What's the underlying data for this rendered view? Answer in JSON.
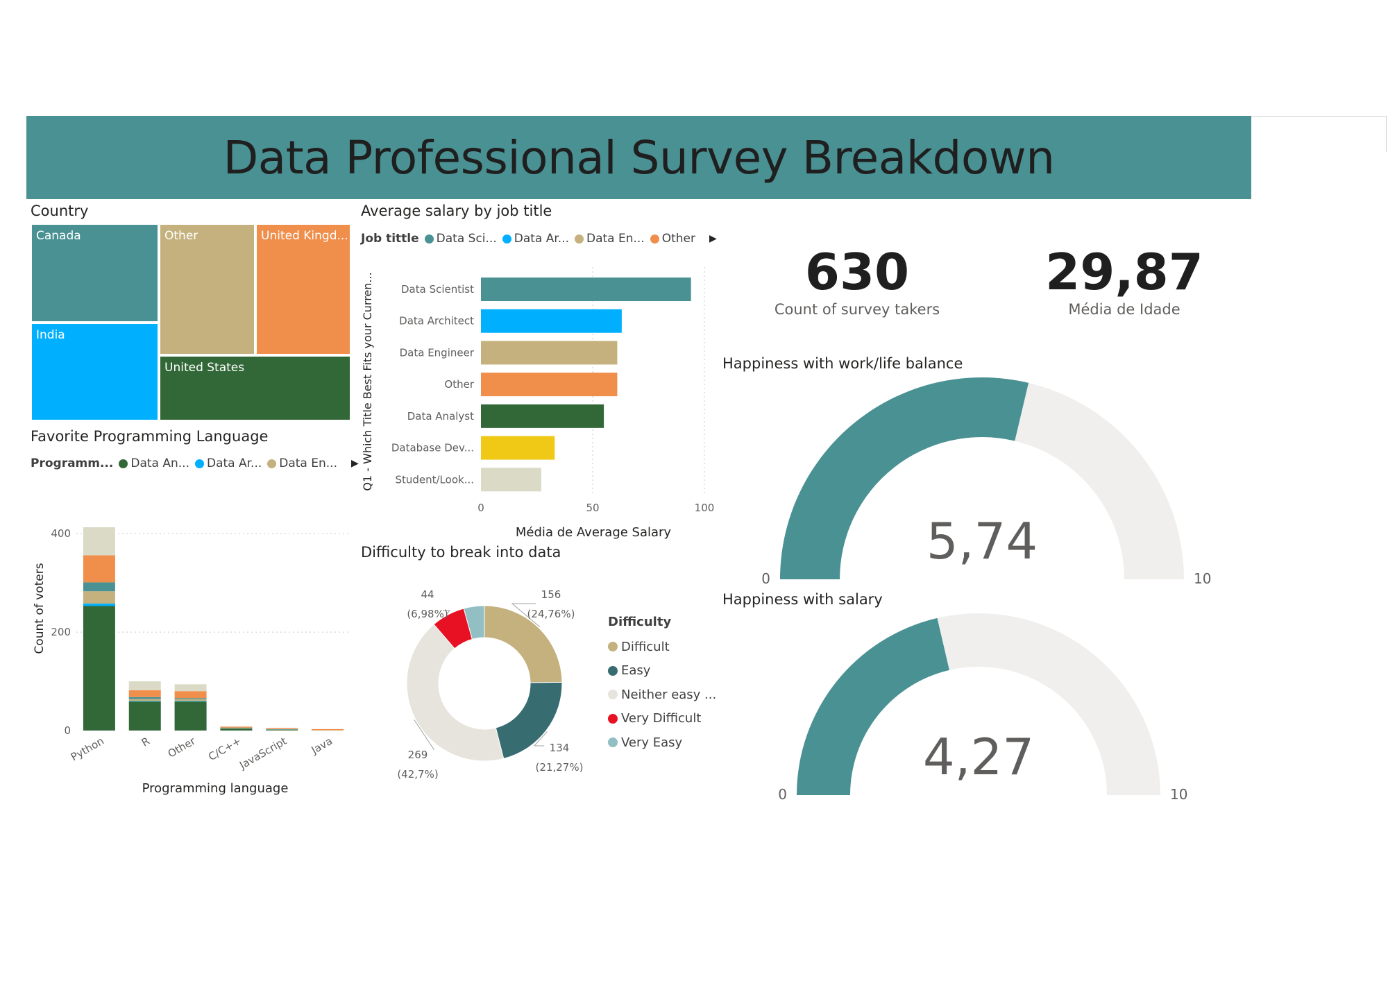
{
  "header": {
    "title": "Data Professional Survey Breakdown"
  },
  "colors": {
    "teal": "#4a9194",
    "blue": "#00b0ff",
    "tan": "#c4b17d",
    "orange": "#f08e4b",
    "green": "#326837",
    "yellow": "#f0c816",
    "lightgray": "#dbdac7",
    "darkteal": "#376c70",
    "offwhite": "#e6e4dc",
    "red": "#e81123",
    "lightblue": "#91bfc4",
    "gaugebg": "#f0efed"
  },
  "country": {
    "title": "Country",
    "chart_data": {
      "type": "treemap",
      "items": [
        {
          "label": "Canada"
        },
        {
          "label": "India"
        },
        {
          "label": "Other"
        },
        {
          "label": "United Kingd..."
        },
        {
          "label": "United States"
        }
      ]
    }
  },
  "programming": {
    "title": "Favorite Programming Language",
    "legend": {
      "heading": "Programm...",
      "items": [
        "Data An...",
        "Data Ar...",
        "Data En..."
      ]
    },
    "chart_data": {
      "type": "bar",
      "stacked": true,
      "xlabel": "Programming language",
      "ylabel": "Count of voters",
      "ylim": [
        0,
        420
      ],
      "yticks": [
        0,
        200,
        400
      ],
      "categories": [
        "Python",
        "R",
        "Other",
        "C/C++",
        "JavaScript",
        "Java"
      ],
      "series": [
        {
          "name": "Data Analyst",
          "color": "#326837",
          "values": [
            253,
            59,
            59,
            4,
            1,
            0
          ]
        },
        {
          "name": "Data Architect",
          "color": "#00b0ff",
          "values": [
            5,
            1,
            1,
            0,
            0,
            0
          ]
        },
        {
          "name": "Data Engineer",
          "color": "#c4b17d",
          "values": [
            25,
            4,
            4,
            1,
            1,
            1
          ]
        },
        {
          "name": "",
          "color": "#4a9194",
          "values": [
            18,
            4,
            2,
            1,
            1,
            0
          ]
        },
        {
          "name": "",
          "color": "#f08e4b",
          "values": [
            55,
            14,
            14,
            2,
            2,
            2
          ]
        },
        {
          "name": "",
          "color": "#dbdac7",
          "values": [
            57,
            18,
            14,
            0,
            0,
            0
          ]
        }
      ]
    }
  },
  "salary": {
    "title": "Average salary by job title",
    "legend": {
      "heading": "Job tittle",
      "items": [
        "Data Sci...",
        "Data Ar...",
        "Data En...",
        "Other"
      ]
    },
    "chart_data": {
      "type": "bar",
      "orientation": "horizontal",
      "xlabel": "Média de Average Salary",
      "ylabel": "Q1 - Which Title Best Fits your Curren...",
      "xlim": [
        0,
        100
      ],
      "xticks": [
        0,
        50,
        100
      ],
      "categories": [
        "Data Scientist",
        "Data Architect",
        "Data Engineer",
        "Other",
        "Data Analyst",
        "Database Dev...",
        "Student/Look..."
      ],
      "values": [
        94,
        63,
        61,
        61,
        55,
        33,
        27
      ],
      "colors": [
        "#4a9194",
        "#00b0ff",
        "#c4b17d",
        "#f08e4b",
        "#326837",
        "#f0c816",
        "#dbdac7"
      ]
    }
  },
  "difficulty": {
    "title": "Difficulty to break into data",
    "legend_title": "Difficulty",
    "chart_data": {
      "type": "pie",
      "donut": true,
      "slices": [
        {
          "name": "Difficult",
          "value": 156,
          "pct": "(24,76%)",
          "label": "156",
          "color": "#c4b17d"
        },
        {
          "name": "Easy",
          "value": 134,
          "pct": "(21,27%)",
          "label": "134",
          "color": "#376c70"
        },
        {
          "name": "Neither easy ...",
          "value": 269,
          "pct": "(42,7%)",
          "label": "269",
          "color": "#e6e4dc"
        },
        {
          "name": "Very Difficult",
          "value": 44,
          "pct": "(6,98%)",
          "label": "44",
          "color": "#e81123"
        },
        {
          "name": "Very Easy",
          "value": 27,
          "pct": "",
          "label": "",
          "color": "#91bfc4"
        }
      ]
    }
  },
  "kpis": {
    "survey_takers": {
      "value": "630",
      "label": "Count of survey takers"
    },
    "age": {
      "value": "29,87",
      "label": "Média de Idade"
    }
  },
  "gauges": {
    "worklife": {
      "title": "Happiness with work/life balance",
      "value": 5.74,
      "display": "5,74",
      "min": 0,
      "max": 10,
      "min_label": "0",
      "max_label": "10"
    },
    "salary": {
      "title": "Happiness with salary",
      "value": 4.27,
      "display": "4,27",
      "min": 0,
      "max": 10,
      "min_label": "0",
      "max_label": "10"
    }
  }
}
